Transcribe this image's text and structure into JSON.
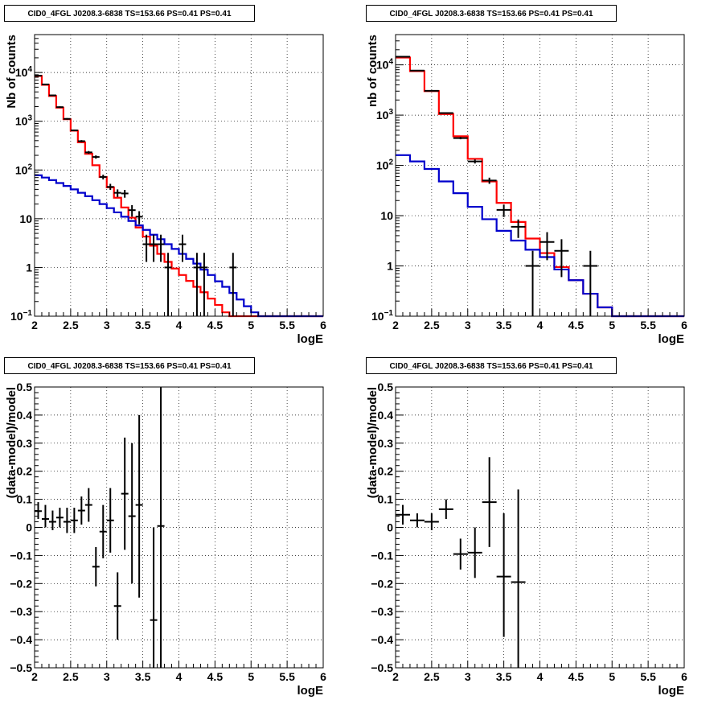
{
  "chart_data": [
    {
      "type": "line",
      "title": "CID0_4FGL J0208.3-6838 TS=153.66 PS=0.41 PS=0.41",
      "xlabel": "logE",
      "ylabel": "Nb of counts",
      "xlim": [
        2,
        6
      ],
      "ylim": [
        0.1,
        60000
      ],
      "yscale": "log",
      "grid": true,
      "x_ticks": [
        "2",
        "2.5",
        "3",
        "3.5",
        "4",
        "4.5",
        "5",
        "5.5",
        "6"
      ],
      "y_ticks": [
        {
          "v": 0.1,
          "label": "10",
          "sup": "−1"
        },
        {
          "v": 1,
          "label": "1",
          "sup": ""
        },
        {
          "v": 10,
          "label": "10",
          "sup": ""
        },
        {
          "v": 100,
          "label": "10",
          "sup": "2"
        },
        {
          "v": 1000,
          "label": "10",
          "sup": "3"
        },
        {
          "v": 10000,
          "label": "10",
          "sup": "4"
        }
      ],
      "bin_edges": [
        2,
        2.1,
        2.2,
        2.3,
        2.4,
        2.5,
        2.6,
        2.7,
        2.8,
        2.9,
        3,
        3.1,
        3.2,
        3.3,
        3.4,
        3.5,
        3.6,
        3.7,
        3.8,
        3.9,
        4,
        4.1,
        4.2,
        4.3,
        4.4,
        4.5,
        4.6,
        4.7,
        4.8,
        4.9,
        5,
        5.1,
        5.2,
        5.3,
        5.4,
        5.5,
        5.6,
        5.7,
        5.8,
        5.9,
        6
      ],
      "series": [
        {
          "color": "#ff0000",
          "style": "histogram",
          "values": [
            8500,
            5600,
            3300,
            1900,
            1100,
            640,
            370,
            215,
            125,
            72,
            44,
            27,
            17,
            10.5,
            6.6,
            4.3,
            2.8,
            1.9,
            1.3,
            0.95,
            0.7,
            0.53,
            0.4,
            0.31,
            0.23,
            0.17,
            0.12,
            0.09,
            0.1,
            0.1,
            0.1,
            0.1,
            0.1,
            0.1,
            0.1,
            0.1,
            0.1,
            0.1,
            0.1,
            0.1
          ]
        },
        {
          "color": "#0000cc",
          "style": "histogram",
          "values": [
            78,
            70,
            62,
            54,
            47,
            40,
            34,
            29,
            24,
            20,
            16.5,
            13.5,
            11,
            9,
            7.3,
            5.9,
            4.7,
            3.8,
            3,
            2.4,
            1.9,
            1.5,
            1.2,
            0.9,
            0.7,
            0.52,
            0.4,
            0.3,
            0.22,
            0.16,
            0.12,
            0.1,
            0.1,
            0.1,
            0.1,
            0.1,
            0.1,
            0.1,
            0.1,
            0.1
          ]
        }
      ],
      "points": [
        {
          "x": 2.05,
          "y": 8600,
          "ylo": 8400,
          "yhi": 8800,
          "xerr": 0.05
        },
        {
          "x": 2.15,
          "y": 5700,
          "ylo": 5550,
          "yhi": 5850,
          "xerr": 0.05
        },
        {
          "x": 2.25,
          "y": 3400,
          "ylo": 3300,
          "yhi": 3500,
          "xerr": 0.05
        },
        {
          "x": 2.35,
          "y": 1950,
          "ylo": 1880,
          "yhi": 2020,
          "xerr": 0.05
        },
        {
          "x": 2.45,
          "y": 1120,
          "ylo": 1080,
          "yhi": 1160,
          "xerr": 0.05
        },
        {
          "x": 2.55,
          "y": 650,
          "ylo": 625,
          "yhi": 675,
          "xerr": 0.05
        },
        {
          "x": 2.65,
          "y": 390,
          "ylo": 370,
          "yhi": 410,
          "xerr": 0.05
        },
        {
          "x": 2.75,
          "y": 230,
          "ylo": 215,
          "yhi": 245,
          "xerr": 0.05
        },
        {
          "x": 2.85,
          "y": 185,
          "ylo": 171,
          "yhi": 199,
          "xerr": 0.05
        },
        {
          "x": 2.95,
          "y": 72,
          "ylo": 64,
          "yhi": 80,
          "xerr": 0.05
        },
        {
          "x": 3.05,
          "y": 45,
          "ylo": 39,
          "yhi": 52,
          "xerr": 0.05
        },
        {
          "x": 3.15,
          "y": 34,
          "ylo": 28,
          "yhi": 40,
          "xerr": 0.05
        },
        {
          "x": 3.25,
          "y": 33,
          "ylo": 27,
          "yhi": 39,
          "xerr": 0.05
        },
        {
          "x": 3.35,
          "y": 15,
          "ylo": 11,
          "yhi": 19,
          "xerr": 0.05
        },
        {
          "x": 3.45,
          "y": 11,
          "ylo": 7.7,
          "yhi": 14.3,
          "xerr": 0.05
        },
        {
          "x": 3.55,
          "y": 3,
          "ylo": 1.3,
          "yhi": 4.7,
          "xerr": 0.05
        },
        {
          "x": 3.65,
          "y": 3,
          "ylo": 1.3,
          "yhi": 4.7,
          "xerr": 0.05
        },
        {
          "x": 3.75,
          "y": 3,
          "ylo": 1.3,
          "yhi": 4.7,
          "xerr": 0.05
        },
        {
          "x": 3.85,
          "y": 1,
          "ylo": 0.1,
          "yhi": 2,
          "xerr": 0.05
        },
        {
          "x": 4.05,
          "y": 3,
          "ylo": 1.3,
          "yhi": 4.7,
          "xerr": 0.05
        },
        {
          "x": 4.25,
          "y": 1,
          "ylo": 0.1,
          "yhi": 2,
          "xerr": 0.05
        },
        {
          "x": 4.35,
          "y": 1,
          "ylo": 0.1,
          "yhi": 2,
          "xerr": 0.05
        },
        {
          "x": 4.75,
          "y": 1,
          "ylo": 0.1,
          "yhi": 2,
          "xerr": 0.05
        }
      ]
    },
    {
      "type": "line",
      "title": "CID0_4FGL J0208.3-6838 TS=153.66 PS=0.41 PS=0.41",
      "xlabel": "logE",
      "ylabel": "nb of counts",
      "xlim": [
        2,
        6
      ],
      "ylim": [
        0.1,
        40000
      ],
      "yscale": "log",
      "grid": true,
      "x_ticks": [
        "2",
        "2.5",
        "3",
        "3.5",
        "4",
        "4.5",
        "5",
        "5.5",
        "6"
      ],
      "y_ticks": [
        {
          "v": 0.1,
          "label": "10",
          "sup": "−1"
        },
        {
          "v": 1,
          "label": "1",
          "sup": ""
        },
        {
          "v": 10,
          "label": "10",
          "sup": ""
        },
        {
          "v": 100,
          "label": "10",
          "sup": "2"
        },
        {
          "v": 1000,
          "label": "10",
          "sup": "3"
        },
        {
          "v": 10000,
          "label": "10",
          "sup": "4"
        }
      ],
      "bin_edges": [
        2,
        2.2,
        2.4,
        2.6,
        2.8,
        3,
        3.2,
        3.4,
        3.6,
        3.8,
        4,
        4.2,
        4.4,
        4.6,
        4.8,
        5,
        5.2,
        5.4,
        5.6,
        5.8,
        6
      ],
      "series": [
        {
          "color": "#ff0000",
          "style": "histogram",
          "values": [
            14000,
            7500,
            3000,
            1050,
            380,
            135,
            48,
            18,
            7.5,
            3.5,
            1.8,
            0.95,
            0.52,
            0.28,
            0.15,
            0.1,
            0.1,
            0.1,
            0.1,
            0.1
          ]
        },
        {
          "color": "#0000cc",
          "style": "histogram",
          "values": [
            160,
            120,
            85,
            48,
            28,
            15,
            8.5,
            5,
            3.2,
            2.1,
            1.5,
            0.85,
            0.52,
            0.28,
            0.15,
            0.1,
            0.1,
            0.1,
            0.1,
            0.1
          ]
        }
      ],
      "points": [
        {
          "x": 2.1,
          "y": 14500,
          "ylo": 14300,
          "yhi": 14700,
          "xerr": 0.1
        },
        {
          "x": 2.3,
          "y": 7700,
          "ylo": 7600,
          "yhi": 7800,
          "xerr": 0.1
        },
        {
          "x": 2.5,
          "y": 3050,
          "ylo": 3000,
          "yhi": 3100,
          "xerr": 0.1
        },
        {
          "x": 2.7,
          "y": 1100,
          "ylo": 1070,
          "yhi": 1130,
          "xerr": 0.1
        },
        {
          "x": 2.9,
          "y": 350,
          "ylo": 331,
          "yhi": 369,
          "xerr": 0.1
        },
        {
          "x": 3.1,
          "y": 120,
          "ylo": 109,
          "yhi": 131,
          "xerr": 0.1
        },
        {
          "x": 3.3,
          "y": 50,
          "ylo": 43,
          "yhi": 57,
          "xerr": 0.1
        },
        {
          "x": 3.5,
          "y": 13,
          "ylo": 9.4,
          "yhi": 16.6,
          "xerr": 0.1
        },
        {
          "x": 3.7,
          "y": 6,
          "ylo": 3.6,
          "yhi": 8.4,
          "xerr": 0.1
        },
        {
          "x": 3.9,
          "y": 1,
          "ylo": 0.1,
          "yhi": 2,
          "xerr": 0.1
        },
        {
          "x": 4.1,
          "y": 3,
          "ylo": 1.3,
          "yhi": 4.7,
          "xerr": 0.1
        },
        {
          "x": 4.3,
          "y": 2,
          "ylo": 0.6,
          "yhi": 3.4,
          "xerr": 0.1
        },
        {
          "x": 4.7,
          "y": 1,
          "ylo": 0.1,
          "yhi": 2,
          "xerr": 0.1
        }
      ]
    },
    {
      "type": "scatter",
      "title": "CID0_4FGL J0208.3-6838 TS=153.66 PS=0.41 PS=0.41",
      "xlabel": "logE",
      "ylabel": "(data-model)/model",
      "xlim": [
        2,
        6
      ],
      "ylim": [
        -0.5,
        0.5
      ],
      "grid": true,
      "x_ticks": [
        "2",
        "2.5",
        "3",
        "3.5",
        "4",
        "4.5",
        "5",
        "5.5",
        "6"
      ],
      "y_ticks": [
        "−0.5",
        "−0.4",
        "−0.3",
        "−0.2",
        "−0.1",
        "0",
        "0.1",
        "0.2",
        "0.3",
        "0.4",
        "0.5"
      ],
      "points": [
        {
          "x": 2.05,
          "y": 0.058,
          "ylo": 0.03,
          "yhi": 0.09,
          "xerr": 0.05
        },
        {
          "x": 2.15,
          "y": 0.03,
          "ylo": 0.0,
          "yhi": 0.08,
          "xerr": 0.05
        },
        {
          "x": 2.25,
          "y": 0.02,
          "ylo": -0.01,
          "yhi": 0.06,
          "xerr": 0.05
        },
        {
          "x": 2.35,
          "y": 0.035,
          "ylo": 0.0,
          "yhi": 0.07,
          "xerr": 0.05
        },
        {
          "x": 2.45,
          "y": 0.02,
          "ylo": -0.02,
          "yhi": 0.07,
          "xerr": 0.05
        },
        {
          "x": 2.55,
          "y": 0.025,
          "ylo": -0.02,
          "yhi": 0.07,
          "xerr": 0.05
        },
        {
          "x": 2.65,
          "y": 0.06,
          "ylo": 0.01,
          "yhi": 0.11,
          "xerr": 0.05
        },
        {
          "x": 2.75,
          "y": 0.08,
          "ylo": 0.02,
          "yhi": 0.14,
          "xerr": 0.05
        },
        {
          "x": 2.85,
          "y": -0.14,
          "ylo": -0.21,
          "yhi": -0.07,
          "xerr": 0.05
        },
        {
          "x": 2.95,
          "y": -0.015,
          "ylo": -0.11,
          "yhi": 0.08,
          "xerr": 0.05
        },
        {
          "x": 3.05,
          "y": 0.025,
          "ylo": -0.09,
          "yhi": 0.14,
          "xerr": 0.05
        },
        {
          "x": 3.15,
          "y": -0.28,
          "ylo": -0.4,
          "yhi": -0.16,
          "xerr": 0.05
        },
        {
          "x": 3.25,
          "y": 0.12,
          "ylo": -0.08,
          "yhi": 0.32,
          "xerr": 0.05
        },
        {
          "x": 3.35,
          "y": 0.04,
          "ylo": -0.2,
          "yhi": 0.3,
          "xerr": 0.05
        },
        {
          "x": 3.45,
          "y": 0.08,
          "ylo": -0.25,
          "yhi": 0.4,
          "xerr": 0.05
        },
        {
          "x": 3.65,
          "y": -0.33,
          "ylo": -0.5,
          "yhi": 0.0,
          "xerr": 0.05
        },
        {
          "x": 3.75,
          "y": 0.005,
          "ylo": -0.5,
          "yhi": 0.5,
          "xerr": 0.05
        }
      ]
    },
    {
      "type": "scatter",
      "title": "CID0_4FGL J0208.3-6838 TS=153.66 PS=0.41 PS=0.41",
      "xlabel": "logE",
      "ylabel": "(data-model)/model",
      "xlim": [
        2,
        6
      ],
      "ylim": [
        -0.5,
        0.5
      ],
      "grid": true,
      "x_ticks": [
        "2",
        "2.5",
        "3",
        "3.5",
        "4",
        "4.5",
        "5",
        "5.5",
        "6"
      ],
      "y_ticks": [
        "−0.5",
        "−0.4",
        "−0.3",
        "−0.2",
        "−0.1",
        "0",
        "0.1",
        "0.2",
        "0.3",
        "0.4",
        "0.5"
      ],
      "points": [
        {
          "x": 2.1,
          "y": 0.045,
          "ylo": 0.01,
          "yhi": 0.08,
          "xerr": 0.1
        },
        {
          "x": 2.3,
          "y": 0.025,
          "ylo": 0.0,
          "yhi": 0.05,
          "xerr": 0.1
        },
        {
          "x": 2.5,
          "y": 0.02,
          "ylo": -0.01,
          "yhi": 0.05,
          "xerr": 0.1
        },
        {
          "x": 2.7,
          "y": 0.065,
          "ylo": 0.03,
          "yhi": 0.1,
          "xerr": 0.1
        },
        {
          "x": 2.9,
          "y": -0.095,
          "ylo": -0.15,
          "yhi": -0.04,
          "xerr": 0.1
        },
        {
          "x": 3.1,
          "y": -0.09,
          "ylo": -0.18,
          "yhi": 0.0,
          "xerr": 0.1
        },
        {
          "x": 3.3,
          "y": 0.09,
          "ylo": -0.07,
          "yhi": 0.25,
          "xerr": 0.1
        },
        {
          "x": 3.5,
          "y": -0.175,
          "ylo": -0.39,
          "yhi": 0.05,
          "xerr": 0.1
        },
        {
          "x": 3.7,
          "y": -0.195,
          "ylo": -0.5,
          "yhi": 0.135,
          "xerr": 0.1
        }
      ]
    }
  ]
}
